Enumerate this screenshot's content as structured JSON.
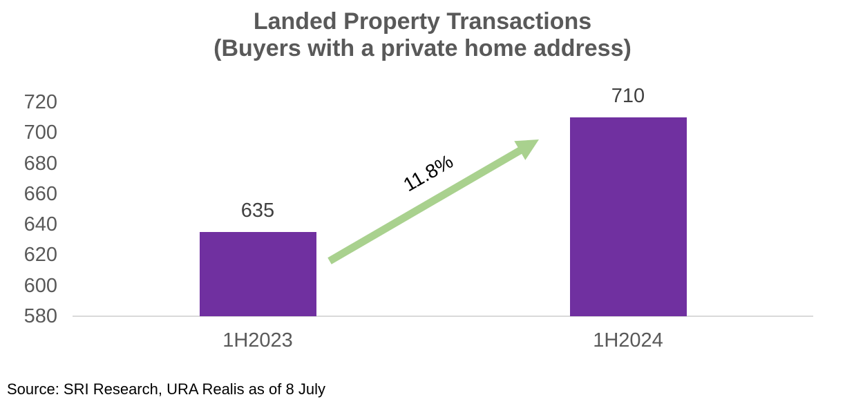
{
  "chart_data": {
    "type": "bar",
    "title": "Landed Property Transactions",
    "subtitle": "(Buyers with a private home address)",
    "categories": [
      "1H2023",
      "1H2024"
    ],
    "values": [
      635,
      710
    ],
    "data_labels": [
      "635",
      "710"
    ],
    "xlabel": "",
    "ylabel": "",
    "ylim": [
      580,
      720
    ],
    "yticks": [
      580,
      600,
      620,
      640,
      660,
      680,
      700,
      720
    ],
    "grid": "off",
    "legend": "none",
    "annotation": {
      "label": "11.8%",
      "shape": "up-right-growth-arrow",
      "from_category": "1H2023",
      "to_category": "1H2024"
    },
    "colors": {
      "bar": "#7030A0",
      "arrow": "#A9D18E",
      "title_text": "#595959",
      "axis_label_text": "#595959",
      "data_label_text": "#404040",
      "axis_line": "#D9D9D9",
      "annotation_text": "#000000",
      "source_text": "#000000",
      "background": "#FFFFFF"
    }
  },
  "footer": {
    "source": "Source: SRI Research, URA Realis as of 8 July"
  }
}
